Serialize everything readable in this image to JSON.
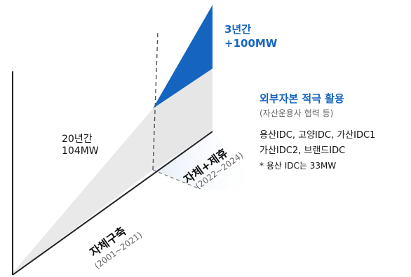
{
  "phase1": {
    "title": "자체구축",
    "period": "(2001~2021)",
    "summary_line1": "20년간",
    "summary_line2": "104MW"
  },
  "phase2": {
    "title": "자체+제휴",
    "period": "(2022~2024)",
    "summary_line1": "3년간",
    "summary_line2": "+100MW"
  },
  "external": {
    "heading": "외부자본 적극 활용",
    "subheading": "(자산운용사 협력 등)",
    "line1": "용산IDC, 고양IDC, 가산IDC1",
    "line2": "가산IDC2, 브랜드IDC",
    "note": "* 용산 IDC는 33MW"
  },
  "colors": {
    "accent_blue": "#1565c0",
    "surface_gray": "#e8e8e8",
    "axis": "#222222"
  }
}
